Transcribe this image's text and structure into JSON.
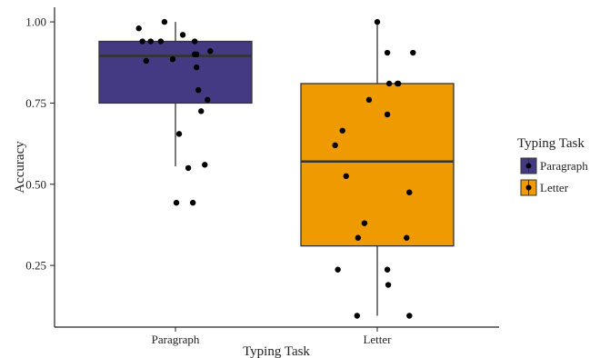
{
  "chart_data": {
    "type": "boxplot",
    "xlabel": "Typing Task",
    "ylabel": "Accuracy",
    "ylim": [
      0.06,
      1.045
    ],
    "yticks": [
      "0.25",
      "0.50",
      "0.75",
      "1.00"
    ],
    "ytick_values": [
      0.25,
      0.5,
      0.75,
      1.0
    ],
    "categories": [
      "Paragraph",
      "Letter"
    ],
    "legend": {
      "title": "Typing Task",
      "position": "right",
      "entries": [
        "Paragraph",
        "Letter"
      ]
    },
    "series": [
      {
        "name": "Paragraph",
        "color": "#443983",
        "box": {
          "whisker_low": 0.555,
          "q1": 0.75,
          "median": 0.895,
          "q3": 0.94,
          "whisker_high": 1.0
        },
        "points": [
          {
            "dx": -0.4,
            "y": 0.98
          },
          {
            "dx": -0.36,
            "y": 0.94
          },
          {
            "dx": -0.32,
            "y": 0.88
          },
          {
            "dx": -0.27,
            "y": 0.94
          },
          {
            "dx": -0.16,
            "y": 0.94
          },
          {
            "dx": -0.12,
            "y": 1.0
          },
          {
            "dx": -0.03,
            "y": 0.885
          },
          {
            "dx": 0.01,
            "y": 0.443
          },
          {
            "dx": 0.04,
            "y": 0.655
          },
          {
            "dx": 0.08,
            "y": 0.96
          },
          {
            "dx": 0.14,
            "y": 0.55
          },
          {
            "dx": 0.19,
            "y": 0.443
          },
          {
            "dx": 0.21,
            "y": 0.94
          },
          {
            "dx": 0.21,
            "y": 0.9
          },
          {
            "dx": 0.23,
            "y": 0.9
          },
          {
            "dx": 0.23,
            "y": 0.86
          },
          {
            "dx": 0.25,
            "y": 0.79
          },
          {
            "dx": 0.28,
            "y": 0.725
          },
          {
            "dx": 0.32,
            "y": 0.56
          },
          {
            "dx": 0.35,
            "y": 0.76
          },
          {
            "dx": 0.38,
            "y": 0.91
          }
        ]
      },
      {
        "name": "Letter",
        "color": "#EE9A00",
        "box": {
          "whisker_low": 0.095,
          "q1": 0.31,
          "median": 0.57,
          "q3": 0.81,
          "whisker_high": 1.0
        },
        "points": [
          {
            "dx": -0.46,
            "y": 0.62
          },
          {
            "dx": -0.43,
            "y": 0.237
          },
          {
            "dx": -0.38,
            "y": 0.665
          },
          {
            "dx": -0.34,
            "y": 0.525
          },
          {
            "dx": -0.22,
            "y": 0.095
          },
          {
            "dx": -0.21,
            "y": 0.335
          },
          {
            "dx": -0.14,
            "y": 0.38
          },
          {
            "dx": -0.09,
            "y": 0.76
          },
          {
            "dx": 0.0,
            "y": 1.0
          },
          {
            "dx": 0.11,
            "y": 0.905
          },
          {
            "dx": 0.11,
            "y": 0.715
          },
          {
            "dx": 0.11,
            "y": 0.237
          },
          {
            "dx": 0.12,
            "y": 0.19
          },
          {
            "dx": 0.13,
            "y": 0.81
          },
          {
            "dx": 0.22,
            "y": 0.81
          },
          {
            "dx": 0.23,
            "y": 0.81
          },
          {
            "dx": 0.32,
            "y": 0.335
          },
          {
            "dx": 0.35,
            "y": 0.475
          },
          {
            "dx": 0.35,
            "y": 0.095
          },
          {
            "dx": 0.39,
            "y": 0.905
          }
        ]
      }
    ]
  }
}
